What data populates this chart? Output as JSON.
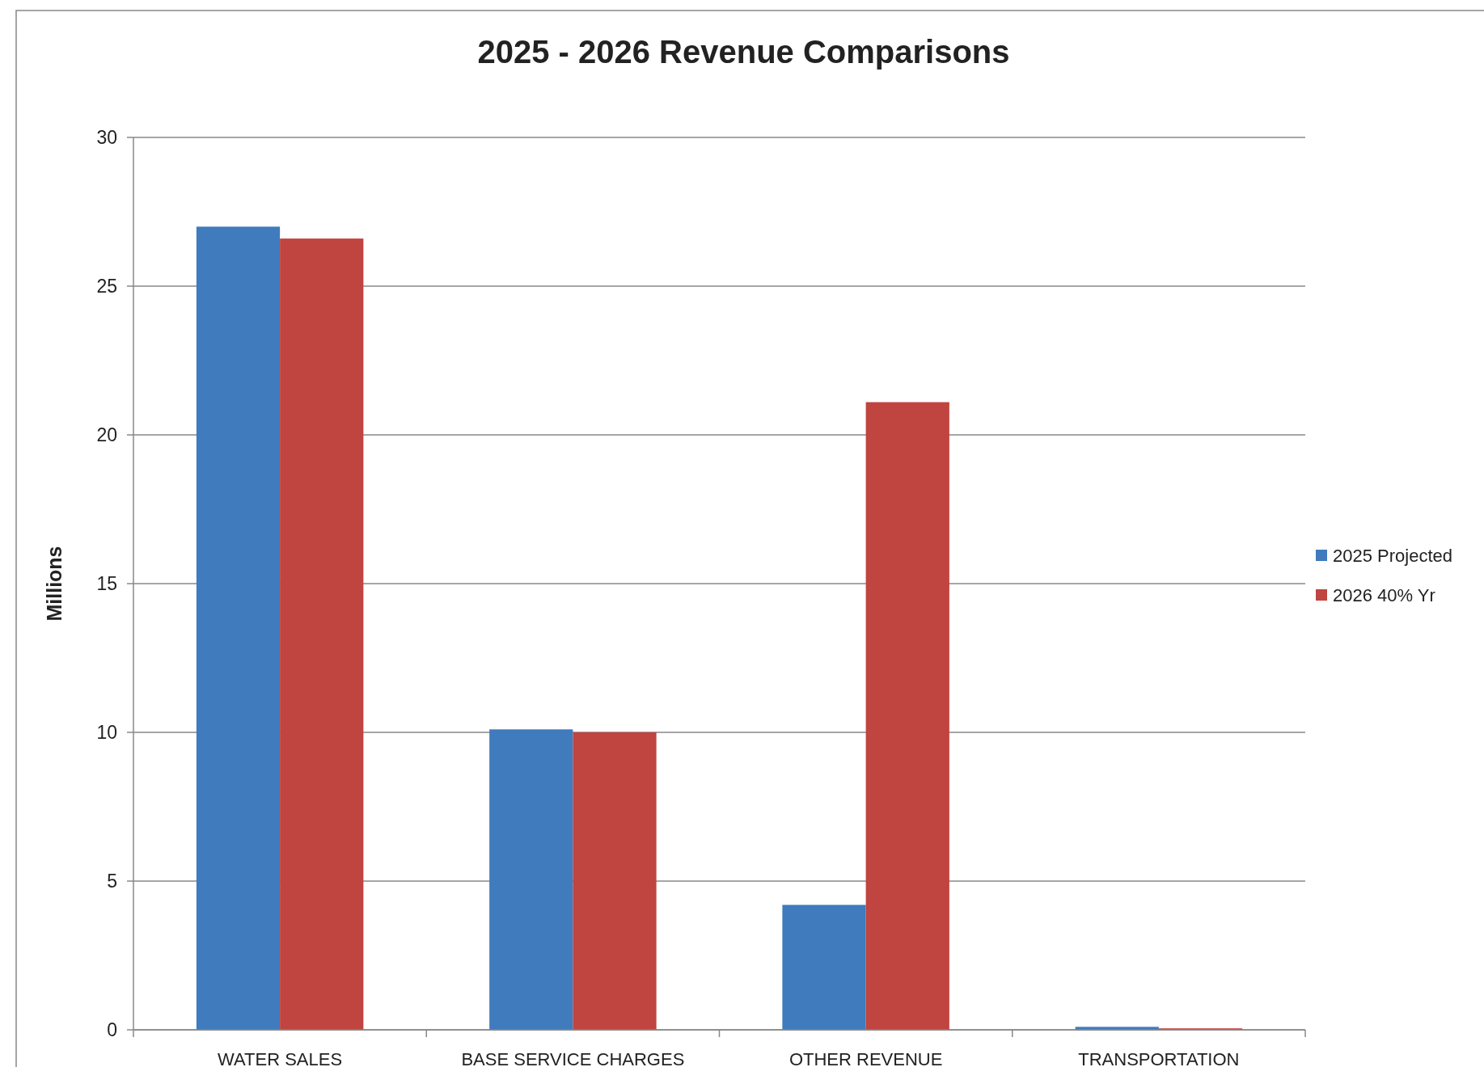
{
  "chart_data": {
    "type": "bar",
    "title": "2025 - 2026 Revenue Comparisons",
    "ylabel": "Millions",
    "categories": [
      "WATER SALES",
      "BASE SERVICE CHARGES",
      "OTHER REVENUE",
      "TRANSPORTATION"
    ],
    "series": [
      {
        "name": "2025 Projected",
        "color": "#3f7bbd",
        "values": [
          27.0,
          10.1,
          4.2,
          0.1
        ]
      },
      {
        "name": "2026 40% Yr",
        "color": "#c0443f",
        "values": [
          26.6,
          10.0,
          21.1,
          0.05
        ]
      }
    ],
    "ylim": [
      0,
      30
    ],
    "yticks": [
      0,
      5,
      10,
      15,
      20,
      25,
      30
    ],
    "grid": "y",
    "legend": "right"
  }
}
